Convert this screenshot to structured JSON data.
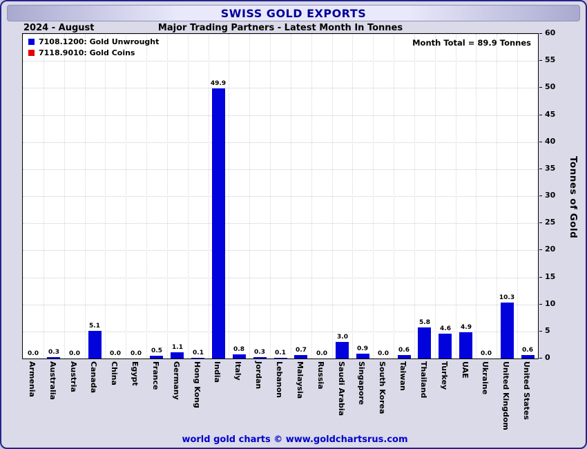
{
  "title": "SWISS GOLD EXPORTS",
  "header": {
    "period": "2024 - August",
    "subtitle": "Major Trading Partners - Latest Month In Tonnes"
  },
  "legend": {
    "items": [
      {
        "label": "7108.1200: Gold Unwrought",
        "color": "#0202dd"
      },
      {
        "label": "7118.9010: Gold Coins",
        "color": "#e60000"
      }
    ]
  },
  "month_total": "Month Total = 89.9 Tonnes",
  "footer": "world gold charts © www.goldchartsrus.com",
  "colors": {
    "bar": "#0202dd",
    "title": "#000099",
    "footer": "#0000cc",
    "background": "#dadae8"
  },
  "chart_data": {
    "type": "bar",
    "title": "SWISS GOLD EXPORTS",
    "subtitle": "Major Trading Partners - Latest Month In Tonnes",
    "period": "2024 - August",
    "categories": [
      "Armenia",
      "Australia",
      "Austria",
      "Canada",
      "China",
      "Egypt",
      "France",
      "Germany",
      "Hong Kong",
      "India",
      "Italy",
      "Jordan",
      "Lebanon",
      "Malaysia",
      "Russia",
      "Saudi Arabia",
      "Singapore",
      "South Korea",
      "Taiwan",
      "Thailand",
      "Turkey",
      "UAE",
      "Ukraine",
      "United Kingdom",
      "United States"
    ],
    "values": [
      0.0,
      0.3,
      0.0,
      5.1,
      0.0,
      0.0,
      0.5,
      1.1,
      0.1,
      49.9,
      0.8,
      0.3,
      0.1,
      0.7,
      0.0,
      3.0,
      0.9,
      0.0,
      0.6,
      5.8,
      4.6,
      4.9,
      0.0,
      10.3,
      0.6
    ],
    "xlabel": "",
    "ylabel": "Tonnes of Gold",
    "ylim": [
      0,
      60
    ],
    "ytick_step": 5,
    "grid": true,
    "legend_position": "top-left",
    "bar_color": "#0202dd",
    "month_total": 89.9
  }
}
